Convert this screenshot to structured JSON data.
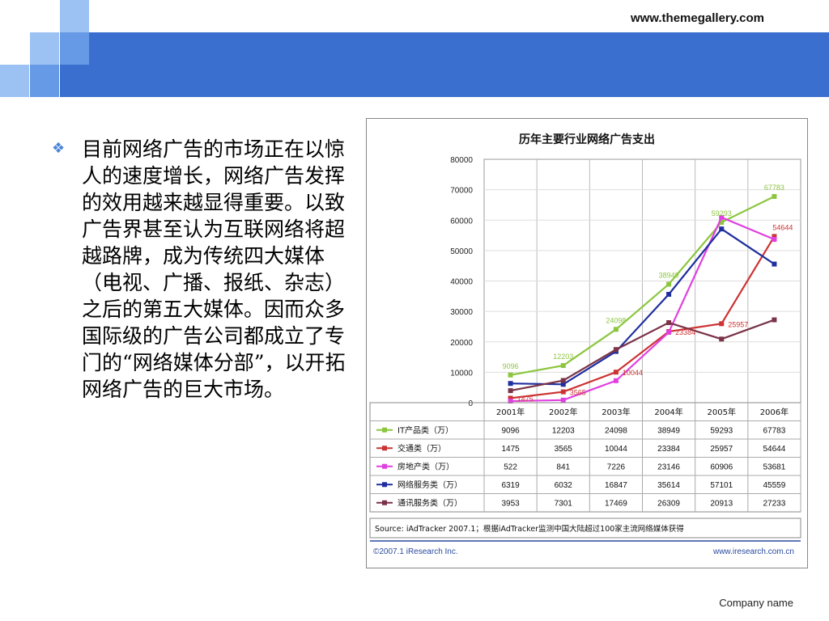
{
  "header": {
    "website": "www.themegallery.com"
  },
  "colors": {
    "banner": "#3a6fd0",
    "square_light": "#9cc2f3",
    "square_mid": "#6699e6"
  },
  "body": {
    "bullet_icon": "diamond-bullet-icon",
    "text": "目前网络广告的市场正在以惊人的速度增长，网络广告发挥的效用越来越显得重要。以致广告界甚至认为互联网络将超越路牌，成为传统四大媒体（电视、广播、报纸、杂志）之后的第五大媒体。因而众多国际级的广告公司都成立了专门的“网络媒体分部”，以开拓网络广告的巨大市场。"
  },
  "footer": {
    "company": "Company name"
  },
  "chart_data": {
    "type": "line",
    "title": "历年主要行业网络广告支出",
    "categories": [
      "2001年",
      "2002年",
      "2003年",
      "2004年",
      "2005年",
      "2006年"
    ],
    "ylim": [
      0,
      80000
    ],
    "yticks": [
      "0",
      "10000",
      "20000",
      "30000",
      "40000",
      "50000",
      "60000",
      "70000",
      "80000"
    ],
    "grid": true,
    "series": [
      {
        "name": "IT产品类（万）",
        "color": "#8cc63f",
        "values": [
          9096,
          12203,
          24098,
          38949,
          59293,
          67783
        ]
      },
      {
        "name": "交通类（万）",
        "color": "#cc3333",
        "values": [
          1475,
          3565,
          10044,
          23384,
          25957,
          54644
        ]
      },
      {
        "name": "房地产类（万）",
        "color": "#e040e0",
        "values": [
          522,
          841,
          7226,
          23146,
          60906,
          53681
        ]
      },
      {
        "name": "网络服务类（万）",
        "color": "#1f2f9f",
        "values": [
          6319,
          6032,
          16847,
          35614,
          57101,
          45559
        ]
      },
      {
        "name": "通讯服务类（万）",
        "color": "#7a3348",
        "values": [
          3953,
          7301,
          17469,
          26309,
          20913,
          27233
        ]
      }
    ],
    "point_labels": [
      {
        "series": 0,
        "index": 0,
        "text": "9096"
      },
      {
        "series": 0,
        "index": 1,
        "text": "12203"
      },
      {
        "series": 0,
        "index": 2,
        "text": "24098"
      },
      {
        "series": 0,
        "index": 3,
        "text": "38949"
      },
      {
        "series": 0,
        "index": 4,
        "text": "59293"
      },
      {
        "series": 0,
        "index": 5,
        "text": "67783"
      },
      {
        "series": 1,
        "index": 0,
        "text": "1475"
      },
      {
        "series": 1,
        "index": 1,
        "text": "3565"
      },
      {
        "series": 1,
        "index": 2,
        "text": "10044"
      },
      {
        "series": 1,
        "index": 3,
        "text": "23384"
      },
      {
        "series": 1,
        "index": 4,
        "text": "25957"
      },
      {
        "series": 1,
        "index": 5,
        "text": "54644"
      }
    ],
    "source": "Source: iAdTracker 2007.1；根据iAdTracker监测中国大陆超过100家主流网络媒体获得",
    "copyright": "©2007.1 iResearch Inc.",
    "url": "www.iresearch.com.cn"
  }
}
